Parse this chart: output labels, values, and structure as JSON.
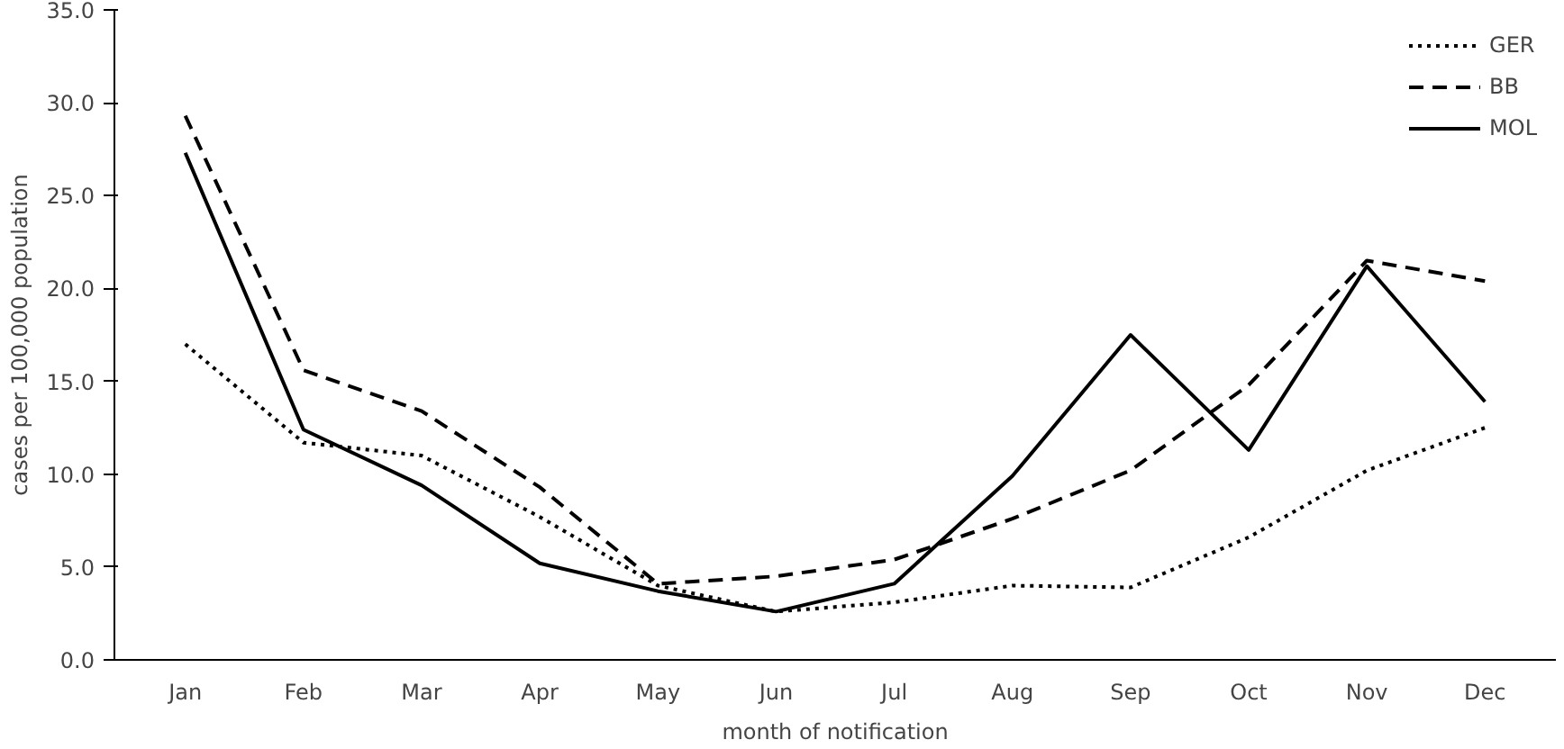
{
  "chart_data": {
    "type": "line",
    "xlabel": "month of notification",
    "ylabel": "cases per 100,000 population",
    "categories": [
      "Jan",
      "Feb",
      "Mar",
      "Apr",
      "May",
      "Jun",
      "Jul",
      "Aug",
      "Sep",
      "Oct",
      "Nov",
      "Dec"
    ],
    "ylim": [
      0,
      35
    ],
    "yticks": [
      {
        "value": 0,
        "label": "0.0"
      },
      {
        "value": 5,
        "label": "5.0"
      },
      {
        "value": 10,
        "label": "10.0"
      },
      {
        "value": 15,
        "label": "15.0"
      },
      {
        "value": 20,
        "label": "20.0"
      },
      {
        "value": 25,
        "label": "25.0"
      },
      {
        "value": 30,
        "label": "30.0"
      },
      {
        "value": 35,
        "label": "35.0"
      }
    ],
    "grid": false,
    "legend": "top right",
    "marker": "none",
    "series": [
      {
        "name": "GER",
        "color": "#000000",
        "line_style": "dotted",
        "values": [
          17.0,
          11.7,
          11.0,
          7.7,
          4.0,
          2.6,
          3.1,
          4.0,
          3.9,
          6.6,
          10.2,
          12.5
        ]
      },
      {
        "name": "BB",
        "color": "#000000",
        "line_style": "dashed",
        "values": [
          29.3,
          15.6,
          13.4,
          9.3,
          4.1,
          4.5,
          5.4,
          7.6,
          10.2,
          14.8,
          21.5,
          20.4
        ]
      },
      {
        "name": "MOL",
        "color": "#000000",
        "line_style": "solid",
        "values": [
          27.3,
          12.4,
          9.4,
          5.2,
          3.7,
          2.6,
          4.1,
          9.9,
          17.5,
          11.3,
          21.2,
          13.9
        ]
      }
    ]
  }
}
